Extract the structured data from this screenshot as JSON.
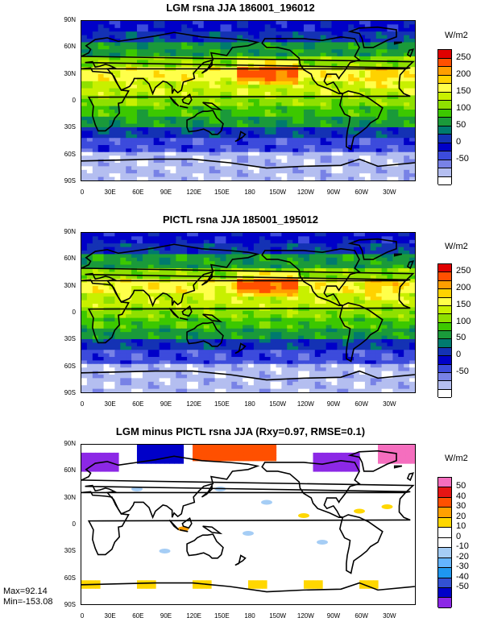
{
  "chart_data": [
    {
      "type": "heatmap",
      "title": "LGM rsna JJA 186001_196012",
      "ylabels": [
        "90N",
        "60N",
        "30N",
        "0",
        "30S",
        "60S",
        "90S"
      ],
      "xlabels": [
        "0",
        "30E",
        "60E",
        "90E",
        "120E",
        "150E",
        "180",
        "150W",
        "120W",
        "90W",
        "60W",
        "30W"
      ],
      "colorbar": {
        "unit": "W/m2",
        "labels": [
          "250",
          "200",
          "150",
          "100",
          "50",
          "0",
          "-50"
        ],
        "colors": [
          "#e00000",
          "#ff5000",
          "#ff9e00",
          "#ffd200",
          "#ffff4a",
          "#c8f000",
          "#8fe000",
          "#3cc800",
          "#1a9a3a",
          "#007a6e",
          "#1432b4",
          "#0000c8",
          "#3c4bdc",
          "#7882e6",
          "#b4bef0",
          "#ffffff"
        ]
      }
    },
    {
      "type": "heatmap",
      "title": "PICTL rsna JJA 185001_195012",
      "ylabels": [
        "90N",
        "60N",
        "30N",
        "0",
        "30S",
        "60S",
        "90S"
      ],
      "xlabels": [
        "0",
        "30E",
        "60E",
        "90E",
        "120E",
        "150E",
        "180",
        "150W",
        "120W",
        "90W",
        "60W",
        "30W"
      ],
      "colorbar": {
        "unit": "W/m2",
        "labels": [
          "250",
          "200",
          "150",
          "100",
          "50",
          "0",
          "-50"
        ],
        "colors": [
          "#e00000",
          "#ff5000",
          "#ff9e00",
          "#ffd200",
          "#ffff4a",
          "#c8f000",
          "#8fe000",
          "#3cc800",
          "#1a9a3a",
          "#007a6e",
          "#1432b4",
          "#0000c8",
          "#3c4bdc",
          "#7882e6",
          "#b4bef0",
          "#ffffff"
        ]
      }
    },
    {
      "type": "heatmap",
      "title": "LGM minus PICTL rsna JJA (Rxy=0.97, RMSE=0.1)",
      "ylabels": [
        "90N",
        "60N",
        "30N",
        "0",
        "30S",
        "60S",
        "90S"
      ],
      "xlabels": [
        "0",
        "30E",
        "60E",
        "90E",
        "120E",
        "150E",
        "180",
        "150W",
        "120W",
        "90W",
        "60W",
        "30W"
      ],
      "colorbar": {
        "unit": "W/m2",
        "labels": [
          "50",
          "40",
          "30",
          "20",
          "10",
          "0",
          "-10",
          "-20",
          "-30",
          "-40",
          "-50"
        ],
        "colors": [
          "#f56ebe",
          "#e61414",
          "#ff5000",
          "#ffa000",
          "#ffd700",
          "#ffffff",
          "#ffffff",
          "#a5cdf5",
          "#64b4ff",
          "#1e96f0",
          "#3250d2",
          "#0000c8",
          "#8c28e6"
        ]
      },
      "max_text": "Max=92.14",
      "min_text": "Min=-153.08"
    }
  ]
}
